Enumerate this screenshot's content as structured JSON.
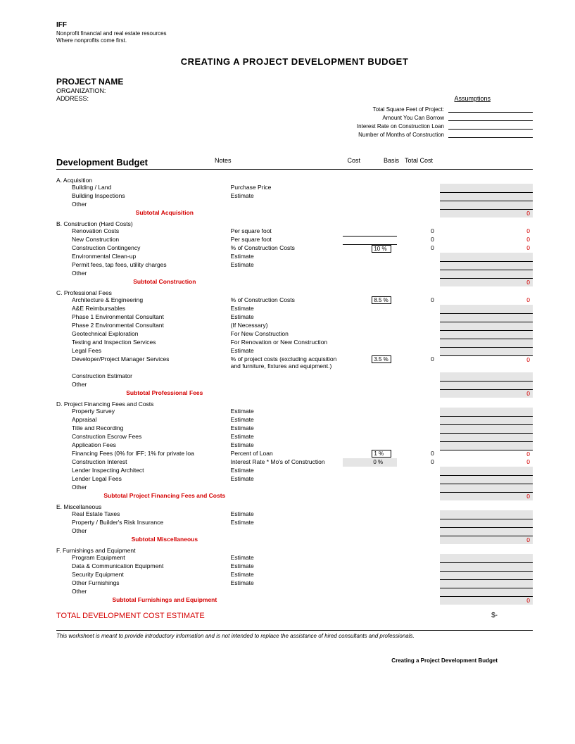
{
  "header": {
    "org": "IFF",
    "tagline1": "Nonprofit financial and real estate resources",
    "tagline2": "Where nonprofits come first."
  },
  "title": "CREATING A PROJECT DEVELOPMENT BUDGET",
  "project": {
    "name_label": "PROJECT NAME",
    "org_label": "ORGANIZATION:",
    "addr_label": "ADDRESS:"
  },
  "assumptions": {
    "link": "Assumptions",
    "rows": [
      "Total Square Feet of Project:",
      "Amount You Can Borrow",
      "Interest Rate on Construction Loan",
      "Number of Months of Construction"
    ]
  },
  "budget_header": {
    "title": "Development Budget",
    "notes": "Notes",
    "cost": "Cost",
    "basis": "Basis",
    "total": "Total Cost"
  },
  "zero": "0",
  "sections": {
    "a": {
      "title": "A. Acquisition",
      "rows": [
        {
          "label": "Building / Land",
          "note": "Purchase Price",
          "cost": "",
          "basis": "",
          "tgrey": true,
          "tul": true
        },
        {
          "label": "Building Inspections",
          "note": "Estimate",
          "cost": "",
          "basis": "",
          "tgrey": true,
          "tul": true
        },
        {
          "label": "Other",
          "note": "",
          "cost": "",
          "basis": "",
          "tgrey": true,
          "tul": true
        }
      ],
      "subtotal": {
        "label": "Subtotal Acquisition",
        "val": "0"
      }
    },
    "b": {
      "title": "B. Construction (Hard Costs)",
      "rows": [
        {
          "label": "Renovation Costs",
          "note": "Per square foot",
          "costul": true,
          "basis": "0",
          "tgrey": false,
          "tul": false,
          "tval": "0",
          "tred": true
        },
        {
          "label": "New Construction",
          "note": "Per square foot",
          "costul": true,
          "basis": "0",
          "tgrey": false,
          "tul": false,
          "tval": "0",
          "tred": true
        },
        {
          "label": "Construction Contingency",
          "note": "% of Construction Costs",
          "pct": "10 %",
          "basis": "0",
          "tgrey": false,
          "tul": false,
          "tval": "0",
          "tred": true
        },
        {
          "label": "Environmental Clean-up",
          "note": "Estimate",
          "cost": "",
          "basis": "",
          "tgrey": true,
          "tul": true
        },
        {
          "label": "Permit fees, tap fees, utility charges",
          "note": "Estimate",
          "cost": "",
          "basis": "",
          "tgrey": true,
          "tul": true
        },
        {
          "label": "Other",
          "note": "",
          "cost": "",
          "basis": "",
          "tgrey": true,
          "tul": true
        }
      ],
      "subtotal": {
        "label": "Subtotal Construction",
        "val": "0"
      }
    },
    "c": {
      "title": "C. Professional Fees",
      "rows": [
        {
          "label": "Architecture & Engineering",
          "note": "% of Construction Costs",
          "pct": "8.5 %",
          "basis": "0",
          "tval": "0",
          "tred": true
        },
        {
          "label": "A&E Reimbursables",
          "note": "Estimate",
          "tgrey": true,
          "tul": true
        },
        {
          "label": "Phase 1 Environmental Consultant",
          "note": "Estimate",
          "tgrey": true,
          "tul": true
        },
        {
          "label": "Phase 2 Environmental Consultant",
          "note": "(If Necessary)",
          "tgrey": true,
          "tul": true
        },
        {
          "label": "Geotechnical Exploration",
          "note": "For New Construction",
          "tgrey": true,
          "tul": true
        },
        {
          "label": "Testing and Inspection Services",
          "note": "For Renovation or New Construction",
          "tgrey": true,
          "tul": true
        },
        {
          "label": "Legal Fees",
          "note": "Estimate",
          "tgrey": true,
          "tul": true
        },
        {
          "label": "Developer/Project Manager Services",
          "note": "% of project costs (excluding acquisition and furniture, fixtures and equipment.)",
          "pct": "3.5 %",
          "basis": "0",
          "tval": "0",
          "tred": true,
          "tall": true
        },
        {
          "label": "Construction Estimator",
          "note": "",
          "tgrey": true,
          "tul": true
        },
        {
          "label": "Other",
          "note": "",
          "tgrey": true,
          "tul": true
        }
      ],
      "subtotal": {
        "label": "Subtotal Professional Fees",
        "val": "0"
      }
    },
    "d": {
      "title": "D. Project Financing Fees and Costs",
      "rows": [
        {
          "label": "Property Survey",
          "note": "Estimate",
          "tgrey": true,
          "tul": true
        },
        {
          "label": "Appraisal",
          "note": "Estimate",
          "tgrey": true,
          "tul": true
        },
        {
          "label": "Title and Recording",
          "note": "Estimate",
          "tgrey": true,
          "tul": true
        },
        {
          "label": "Construction Escrow Fees",
          "note": "Estimate",
          "tgrey": true,
          "tul": true
        },
        {
          "label": "Application Fees",
          "note": "Estimate",
          "tgrey": true,
          "tul": true
        },
        {
          "label": "Financing Fees (0% for IFF; 1% for private loa",
          "note": "Percent of Loan",
          "pct": "1 %",
          "basis": "0",
          "tval": "0",
          "tred": true
        },
        {
          "label": "Construction Interest",
          "note": "Interest Rate * Mo's of Construction",
          "pctg": "0 %",
          "basis": "0",
          "tval": "0",
          "tred": true
        },
        {
          "label": "Lender Inspecting Architect",
          "note": "Estimate",
          "tgrey": true,
          "tul": true
        },
        {
          "label": "Lender Legal Fees",
          "note": "Estimate",
          "tgrey": true,
          "tul": true
        },
        {
          "label": "Other",
          "note": "",
          "tgrey": true,
          "tul": true
        }
      ],
      "subtotal": {
        "label": "Subtotal Project Financing Fees and Costs",
        "val": "0"
      }
    },
    "e": {
      "title": "E. Miscellaneous",
      "rows": [
        {
          "label": "Real Estate Taxes",
          "note": "Estimate",
          "tgrey": true,
          "tul": true
        },
        {
          "label": "Property / Builder's Risk Insurance",
          "note": "Estimate",
          "tgrey": true,
          "tul": true
        },
        {
          "label": "Other",
          "note": "",
          "tgrey": true,
          "tul": true
        }
      ],
      "subtotal": {
        "label": "Subtotal Miscellaneous",
        "val": "0"
      }
    },
    "f": {
      "title": "F. Furnishings and Equipment",
      "rows": [
        {
          "label": "Program Equipment",
          "note": "Estimate",
          "tgrey": true,
          "tul": true
        },
        {
          "label": "Data & Communication Equipment",
          "note": "Estimate",
          "tgrey": true,
          "tul": true
        },
        {
          "label": "Security Equipment",
          "note": "Estimate",
          "tgrey": true,
          "tul": true
        },
        {
          "label": "Other Furnishings",
          "note": "Estimate",
          "tgrey": true,
          "tul": true
        },
        {
          "label": "Other",
          "note": "",
          "tgrey": true,
          "tul": true
        }
      ],
      "subtotal": {
        "label": "Subtotal Furnishings and Equipment",
        "val": "0"
      }
    }
  },
  "grand_total": {
    "label": "TOTAL DEVELOPMENT COST ESTIMATE",
    "val": "$-"
  },
  "disclaimer": "This worksheet is meant to provide introductory information and is not intended to replace the assistance of hired consultants and professionals.",
  "footer": "Creating a Project Development Budget"
}
